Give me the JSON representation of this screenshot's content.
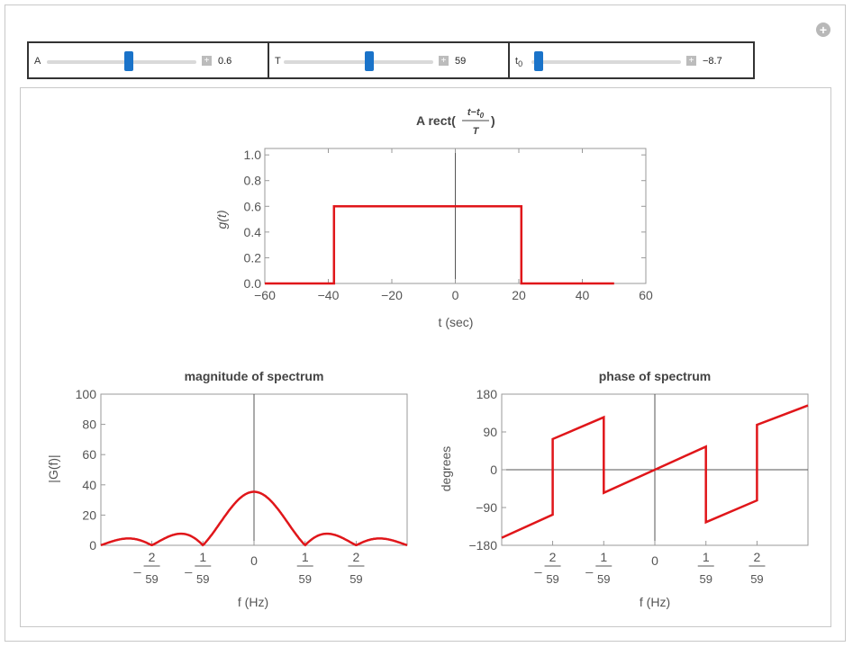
{
  "controls": [
    {
      "label": "A",
      "value": "0.6",
      "fraction": 0.55
    },
    {
      "label": "T",
      "value": "59",
      "fraction": 0.57
    },
    {
      "label": "t",
      "label_sub": "0",
      "value": "−8.7",
      "fraction": 0.05
    }
  ],
  "icons": {
    "add": "plus-circle-icon",
    "stepper": "plus-square-icon"
  },
  "colors": {
    "curve": "#e0161a",
    "thumb": "#1a73c9",
    "axis": "#555555"
  },
  "chart_data": [
    {
      "type": "line",
      "title_prefix": "A rect(",
      "title_numerator": "t−t",
      "title_numerator_sub": "0",
      "title_denominator": "T",
      "title_suffix": ")",
      "xlabel": "t (sec)",
      "ylabel": "g(t)",
      "xlim": [
        -60,
        60
      ],
      "ylim": [
        0,
        1.05
      ],
      "xticks": [
        -60,
        -40,
        -20,
        0,
        20,
        40,
        60
      ],
      "xtick_labels": [
        "−60",
        "−40",
        "−20",
        "0",
        "20",
        "40",
        "60"
      ],
      "yticks": [
        0,
        0.2,
        0.4,
        0.6,
        0.8,
        1.0
      ],
      "ytick_labels": [
        "0.0",
        "0.2",
        "0.4",
        "0.6",
        "0.8",
        "1.0"
      ],
      "x": [
        -60,
        -38.2,
        -38.2,
        20.8,
        20.8,
        50
      ],
      "y": [
        0,
        0,
        0.6,
        0.6,
        0,
        0
      ]
    },
    {
      "type": "line",
      "title": "magnitude of spectrum",
      "xlabel": "f (Hz)",
      "ylabel": "|G(f)|",
      "xlim": [
        -0.0508,
        0.0508
      ],
      "ylim": [
        0,
        100
      ],
      "yticks": [
        0,
        20,
        40,
        60,
        80,
        100
      ],
      "ytick_labels": [
        "0",
        "20",
        "40",
        "60",
        "80",
        "100"
      ],
      "xtick_values": [
        -0.0339,
        -0.01695,
        0,
        0.01695,
        0.0339
      ],
      "xtick_num": [
        "2",
        "1",
        "0",
        "1",
        "2"
      ],
      "xtick_den": [
        "59",
        "59",
        "",
        "59",
        "59"
      ],
      "xtick_neg": [
        true,
        true,
        false,
        false,
        false
      ],
      "amplitude": 0.6,
      "width_T": 59
    },
    {
      "type": "line",
      "title": "phase of spectrum",
      "xlabel": "f (Hz)",
      "ylabel": "degrees",
      "xlim": [
        -0.0508,
        0.0508
      ],
      "ylim": [
        -180,
        180
      ],
      "yticks": [
        -180,
        -90,
        0,
        90,
        180
      ],
      "ytick_labels": [
        "−180",
        "−90",
        "0",
        "90",
        "180"
      ],
      "xtick_values": [
        -0.0339,
        -0.01695,
        0,
        0.01695,
        0.0339
      ],
      "xtick_num": [
        "2",
        "1",
        "0",
        "1",
        "2"
      ],
      "xtick_den": [
        "59",
        "59",
        "",
        "59",
        "59"
      ],
      "xtick_neg": [
        true,
        true,
        false,
        false,
        false
      ],
      "points": [
        [
          -0.0508,
          -162
        ],
        [
          -0.0339,
          -107
        ],
        [
          -0.0339,
          73
        ],
        [
          -0.01695,
          125
        ],
        [
          -0.01695,
          -55
        ],
        [
          0,
          0
        ],
        [
          0.01695,
          55
        ],
        [
          0.01695,
          -125
        ],
        [
          0.0339,
          -73
        ],
        [
          0.0339,
          107
        ],
        [
          0.0508,
          153
        ]
      ]
    }
  ]
}
